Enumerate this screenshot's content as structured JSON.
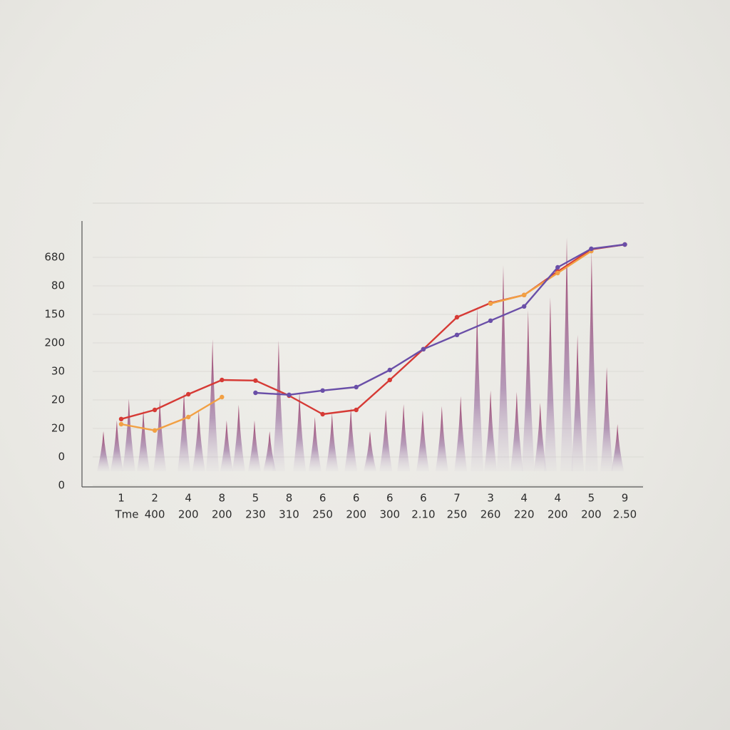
{
  "chart_data": {
    "type": "line",
    "categories": [
      "1",
      "2",
      "4",
      "8",
      "5",
      "8",
      "6",
      "6",
      "6",
      "6",
      "7",
      "3",
      "4",
      "4",
      "5",
      "9"
    ],
    "category_sublabels": [
      "Tme",
      "400",
      "200",
      "200",
      "230",
      "310",
      "250",
      "200",
      "300",
      "2.10",
      "250",
      "260",
      "220",
      "200",
      "200",
      "2.50"
    ],
    "ylim": [
      0,
      9.3
    ],
    "yticks": [
      0,
      {
        "value": 1,
        "label": "0"
      },
      {
        "value": 2,
        "label": "20"
      },
      {
        "value": 3,
        "label": "20"
      },
      {
        "value": 4,
        "label": "30"
      },
      {
        "value": 5,
        "label": "200"
      },
      {
        "value": 6,
        "label": "150"
      },
      {
        "value": 7,
        "label": "80"
      },
      {
        "value": 8,
        "label": "680"
      }
    ],
    "grid": true,
    "series": [
      {
        "color": "#d63a35",
        "values": [
          2.33,
          2.65,
          3.2,
          3.7,
          3.68,
          3.15,
          2.5,
          2.65,
          3.7,
          4.78,
          5.9,
          6.4,
          6.68,
          7.5,
          8.28,
          8.45
        ]
      },
      {
        "color": "#f2a043",
        "values": [
          2.15,
          1.93,
          2.4,
          3.1,
          null,
          null,
          null,
          null,
          null,
          null,
          null,
          6.38,
          6.68,
          7.45,
          8.22,
          null
        ]
      },
      {
        "color": "#6a4fa8",
        "values": [
          null,
          null,
          null,
          null,
          3.25,
          3.18,
          3.33,
          3.45,
          4.05,
          4.78,
          5.28,
          5.78,
          6.28,
          7.65,
          8.3,
          8.45
        ]
      }
    ],
    "spikes": {
      "x": [
        -0.53,
        -0.13,
        0.23,
        0.66,
        1.15,
        1.87,
        2.31,
        2.72,
        3.14,
        3.5,
        3.97,
        4.42,
        4.69,
        5.31,
        5.77,
        6.28,
        6.84,
        7.41,
        7.88,
        8.41,
        8.98,
        9.55,
        10.11,
        10.6,
        11.0,
        11.38,
        11.78,
        12.12,
        12.48,
        12.78,
        13.27,
        13.59,
        14.01,
        14.46,
        14.78
      ],
      "values": [
        1.9,
        2.28,
        3.03,
        2.65,
        3.03,
        3.28,
        2.65,
        5.13,
        2.28,
        2.83,
        2.28,
        1.9,
        5.08,
        3.28,
        2.4,
        2.53,
        2.73,
        1.9,
        2.65,
        2.85,
        2.63,
        2.78,
        3.13,
        6.28,
        3.33,
        7.73,
        3.28,
        6.15,
        2.9,
        6.6,
        8.7,
        5.28,
        8.23,
        4.15,
        2.15
      ]
    }
  }
}
